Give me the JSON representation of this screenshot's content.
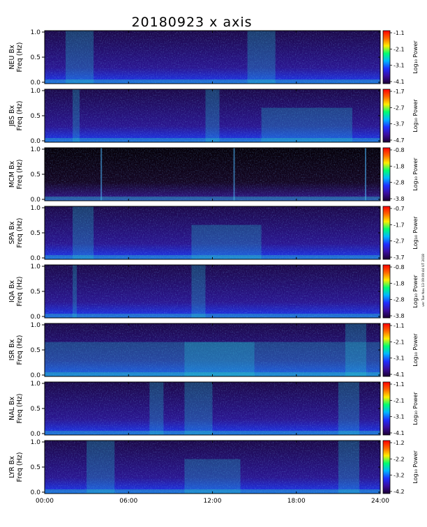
{
  "title": "20180923 x axis",
  "side_note": "ver Tue Nov 13 09:09:44 UT 2018",
  "x_ticks": [
    "00:00",
    "06:00",
    "12:00",
    "18:00",
    "24:00"
  ],
  "colorbar_label": "Log₁₀ Power",
  "colorbar_stops": [
    "#1a0033",
    "#3a0ea0",
    "#1f2fff",
    "#00b8ff",
    "#00ff70",
    "#ffee00",
    "#ff6600",
    "#ff0000"
  ],
  "chart_data": [
    {
      "type": "heatmap",
      "station": "NEU",
      "ylabel_line1": "NEU Bx",
      "ylabel_line2": "Freq (Hz)",
      "y_ticks": [
        "0.0",
        "0.5",
        "1.0"
      ],
      "ylim": [
        0,
        1
      ],
      "x_range_hours": [
        0,
        24
      ],
      "colorbar_ticks": [
        "-1.1",
        "-2.1",
        "-3.1",
        "-4.1"
      ],
      "colorbar_range": [
        -4.1,
        -1.1
      ],
      "colorbar_label": "Log₁₀ Power"
    },
    {
      "type": "heatmap",
      "station": "JBS",
      "ylabel_line1": "JBS Bx",
      "ylabel_line2": "Freq (Hz)",
      "y_ticks": [
        "0.0",
        "0.5",
        "1.0"
      ],
      "ylim": [
        0,
        1
      ],
      "x_range_hours": [
        0,
        24
      ],
      "colorbar_ticks": [
        "-1.7",
        "-2.7",
        "-3.7",
        "-4.7"
      ],
      "colorbar_range": [
        -4.7,
        -1.7
      ],
      "colorbar_label": "Log₁₀ Power"
    },
    {
      "type": "heatmap",
      "station": "MCM",
      "ylabel_line1": "MCM Bx",
      "ylabel_line2": "Freq (Hz)",
      "y_ticks": [
        "0.0",
        "0.5",
        "1.0"
      ],
      "ylim": [
        0,
        1
      ],
      "x_range_hours": [
        0,
        24
      ],
      "colorbar_ticks": [
        "-0.8",
        "-1.8",
        "-2.8",
        "-3.8"
      ],
      "colorbar_range": [
        -3.8,
        -0.8
      ],
      "colorbar_label": "Log₁₀ Power"
    },
    {
      "type": "heatmap",
      "station": "SPA",
      "ylabel_line1": "SPA Bx",
      "ylabel_line2": "Freq (Hz)",
      "y_ticks": [
        "0.0",
        "0.5",
        "1.0"
      ],
      "ylim": [
        0,
        1
      ],
      "x_range_hours": [
        0,
        24
      ],
      "colorbar_ticks": [
        "-0.7",
        "-1.7",
        "-2.7",
        "-3.7"
      ],
      "colorbar_range": [
        -3.7,
        -0.7
      ],
      "colorbar_label": "Log₁₀ Power"
    },
    {
      "type": "heatmap",
      "station": "IQA",
      "ylabel_line1": "IQA Bx",
      "ylabel_line2": "Freq (Hz)",
      "y_ticks": [
        "0.0",
        "0.5",
        "1.0"
      ],
      "ylim": [
        0,
        1
      ],
      "x_range_hours": [
        0,
        24
      ],
      "colorbar_ticks": [
        "-0.8",
        "-1.8",
        "-2.8",
        "-3.8"
      ],
      "colorbar_range": [
        -3.8,
        -0.8
      ],
      "colorbar_label": "Log₁₀ Power"
    },
    {
      "type": "heatmap",
      "station": "ISR",
      "ylabel_line1": "ISR Bx",
      "ylabel_line2": "Freq (Hz)",
      "y_ticks": [
        "0.0",
        "0.5",
        "1.0"
      ],
      "ylim": [
        0,
        1
      ],
      "x_range_hours": [
        0,
        24
      ],
      "colorbar_ticks": [
        "-1.1",
        "-2.1",
        "-3.1",
        "-4.1"
      ],
      "colorbar_range": [
        -4.1,
        -1.1
      ],
      "colorbar_label": "Log₁₀ Power"
    },
    {
      "type": "heatmap",
      "station": "NAL",
      "ylabel_line1": "NAL Bx",
      "ylabel_line2": "Freq (Hz)",
      "y_ticks": [
        "0.0",
        "0.5",
        "1.0"
      ],
      "ylim": [
        0,
        1
      ],
      "x_range_hours": [
        0,
        24
      ],
      "colorbar_ticks": [
        "-1.1",
        "-2.1",
        "-3.1",
        "-4.1"
      ],
      "colorbar_range": [
        -4.1,
        -1.1
      ],
      "colorbar_label": "Log₁₀ Power"
    },
    {
      "type": "heatmap",
      "station": "LYR",
      "ylabel_line1": "LYR Bx",
      "ylabel_line2": "Freq (Hz)",
      "y_ticks": [
        "0.0",
        "0.5",
        "1.0"
      ],
      "ylim": [
        0,
        1
      ],
      "x_range_hours": [
        0,
        24
      ],
      "colorbar_ticks": [
        "-1.2",
        "-2.2",
        "-3.2",
        "-4.2"
      ],
      "colorbar_range": [
        -4.2,
        -1.2
      ],
      "colorbar_label": "Log₁₀ Power"
    }
  ]
}
